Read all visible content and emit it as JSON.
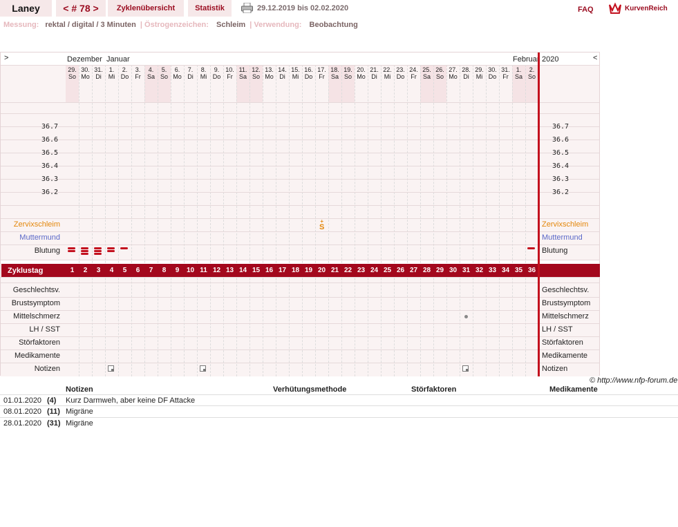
{
  "topbar": {
    "user": "Laney",
    "cycle": "< # 78 >",
    "overview": "Zyklenübersicht",
    "stats": "Statistik",
    "range": "29.12.2019 bis 02.02.2020",
    "faq": "FAQ",
    "logo": "KurvenReich"
  },
  "info": {
    "measure_label": "Messung:",
    "measure_value": "rektal / digital / 3 Minuten",
    "sep": "|",
    "estrogen_label": "Östrogenzeichen:",
    "estrogen_value": "Schleim",
    "use_label": "Verwendung:",
    "use_value": "Beobachtung"
  },
  "chart": {
    "nav_left": ">",
    "nav_right": "<",
    "months": [
      "Dezember",
      "Januar",
      "Februar",
      "2020"
    ],
    "days": [
      {
        "d": "29.",
        "w": "So"
      },
      {
        "d": "30.",
        "w": "Mo"
      },
      {
        "d": "31.",
        "w": "Di"
      },
      {
        "d": "1.",
        "w": "Mi"
      },
      {
        "d": "2.",
        "w": "Do"
      },
      {
        "d": "3.",
        "w": "Fr"
      },
      {
        "d": "4.",
        "w": "Sa"
      },
      {
        "d": "5.",
        "w": "So"
      },
      {
        "d": "6.",
        "w": "Mo"
      },
      {
        "d": "7.",
        "w": "Di"
      },
      {
        "d": "8.",
        "w": "Mi"
      },
      {
        "d": "9.",
        "w": "Do"
      },
      {
        "d": "10.",
        "w": "Fr"
      },
      {
        "d": "11.",
        "w": "Sa"
      },
      {
        "d": "12.",
        "w": "So"
      },
      {
        "d": "13.",
        "w": "Mo"
      },
      {
        "d": "14.",
        "w": "Di"
      },
      {
        "d": "15.",
        "w": "Mi"
      },
      {
        "d": "16.",
        "w": "Do"
      },
      {
        "d": "17.",
        "w": "Fr"
      },
      {
        "d": "18.",
        "w": "Sa"
      },
      {
        "d": "19.",
        "w": "So"
      },
      {
        "d": "20.",
        "w": "Mo"
      },
      {
        "d": "21.",
        "w": "Di"
      },
      {
        "d": "22.",
        "w": "Mi"
      },
      {
        "d": "23.",
        "w": "Do"
      },
      {
        "d": "24.",
        "w": "Fr"
      },
      {
        "d": "25.",
        "w": "Sa"
      },
      {
        "d": "26.",
        "w": "So"
      },
      {
        "d": "27.",
        "w": "Mo"
      },
      {
        "d": "28.",
        "w": "Di"
      },
      {
        "d": "29.",
        "w": "Mi"
      },
      {
        "d": "30.",
        "w": "Do"
      },
      {
        "d": "31.",
        "w": "Fr"
      },
      {
        "d": "1.",
        "w": "Sa"
      },
      {
        "d": "2.",
        "w": "So"
      }
    ],
    "weekend_days": [
      1,
      7,
      8,
      14,
      15,
      21,
      22,
      28,
      29,
      35,
      36
    ],
    "temps": [
      "36.7",
      "36.6",
      "36.5",
      "36.4",
      "36.3",
      "36.2"
    ],
    "rows": {
      "zervix": "Zervixschleim",
      "muttermund": "Muttermund",
      "blutung": "Blutung",
      "zyklustag": "Zyklustag",
      "gv": "Geschlechtsv.",
      "brust": "Brustsymptom",
      "mittel": "Mittelschmerz",
      "lh": "LH / SST",
      "stoer": "Störfaktoren",
      "medi": "Medikamente",
      "notizen": "Notizen"
    },
    "cervix_mark": {
      "day": 20,
      "symbol": "S",
      "sign": "+"
    },
    "bleeding": [
      {
        "day": 1,
        "bars": 2
      },
      {
        "day": 2,
        "bars": 3
      },
      {
        "day": 3,
        "bars": 3
      },
      {
        "day": 4,
        "bars": 2
      },
      {
        "day": 5,
        "bars": 1
      },
      {
        "day": 36,
        "bars": 1
      }
    ],
    "mittelschmerz_day": 31,
    "note_days": [
      4,
      11,
      31
    ],
    "colors": {
      "accent": "#a3081d",
      "cervix": "#e3870b",
      "muttermund": "#5a68c8"
    }
  },
  "credit": "© http://www.nfp-forum.de",
  "notes_table": {
    "headers": [
      "Notizen",
      "Verhütungsmethode",
      "Störfaktoren",
      "Medikamente"
    ],
    "rows": [
      {
        "date": "01.01.2020",
        "day": "(4)",
        "note": "Kurz Darmweh, aber keine DF Attacke"
      },
      {
        "date": "08.01.2020",
        "day": "(11)",
        "note": "Migräne"
      },
      {
        "date": "28.01.2020",
        "day": "(31)",
        "note": "Migräne"
      }
    ]
  }
}
